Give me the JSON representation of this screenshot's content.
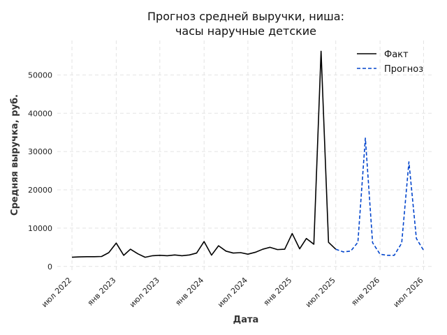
{
  "chart_data": {
    "type": "line",
    "title_line1": "Прогноз средней выручки, ниша:",
    "title_line2": "часы наручные детские",
    "xlabel": "Дата",
    "ylabel": "Средняя выручка, руб.",
    "xticks": [
      {
        "date": "2022-07-01",
        "label": "июл 2022"
      },
      {
        "date": "2023-01-01",
        "label": "янв 2023"
      },
      {
        "date": "2023-07-01",
        "label": "июл 2023"
      },
      {
        "date": "2024-01-01",
        "label": "янв 2024"
      },
      {
        "date": "2024-07-01",
        "label": "июл 2024"
      },
      {
        "date": "2025-01-01",
        "label": "янв 2025"
      },
      {
        "date": "2025-07-01",
        "label": "июл 2025"
      },
      {
        "date": "2026-01-01",
        "label": "янв 2026"
      },
      {
        "date": "2026-07-01",
        "label": "июл 2026"
      }
    ],
    "yticks": [
      0,
      10000,
      20000,
      30000,
      40000,
      50000
    ],
    "xlim": [
      "2022-05-01",
      "2026-08-15"
    ],
    "ylim": [
      -1500,
      59000
    ],
    "grid": true,
    "legend_position": "top-right",
    "series": [
      {
        "name": "Факт",
        "color": "#000000",
        "style": "solid",
        "x": [
          "2022-07-01",
          "2022-08-01",
          "2022-09-01",
          "2022-10-01",
          "2022-11-01",
          "2022-12-01",
          "2023-01-01",
          "2023-02-01",
          "2023-03-01",
          "2023-04-01",
          "2023-05-01",
          "2023-06-01",
          "2023-07-01",
          "2023-08-01",
          "2023-09-01",
          "2023-10-01",
          "2023-11-01",
          "2023-12-01",
          "2024-01-01",
          "2024-02-01",
          "2024-03-01",
          "2024-04-01",
          "2024-05-01",
          "2024-06-01",
          "2024-07-01",
          "2024-08-01",
          "2024-09-01",
          "2024-10-01",
          "2024-11-01",
          "2024-12-01",
          "2025-01-01",
          "2025-02-01",
          "2025-03-01",
          "2025-04-01",
          "2025-05-01",
          "2025-06-01",
          "2025-07-01"
        ],
        "y": [
          2400,
          2500,
          2550,
          2550,
          2600,
          3600,
          6100,
          2900,
          4500,
          3300,
          2400,
          2800,
          2900,
          2800,
          3000,
          2800,
          3000,
          3500,
          6500,
          2950,
          5400,
          4000,
          3500,
          3600,
          3200,
          3700,
          4500,
          5000,
          4400,
          4500,
          8600,
          4600,
          7300,
          5800,
          56200,
          6300,
          4500
        ]
      },
      {
        "name": "Прогноз",
        "color": "#0044cc",
        "style": "dashed",
        "x": [
          "2025-07-01",
          "2025-08-01",
          "2025-09-01",
          "2025-10-01",
          "2025-11-01",
          "2025-12-01",
          "2026-01-01",
          "2026-02-01",
          "2026-03-01",
          "2026-04-01",
          "2026-05-01",
          "2026-06-01",
          "2026-07-01"
        ],
        "y": [
          4500,
          3800,
          4000,
          6300,
          33500,
          6200,
          3200,
          2900,
          2900,
          6100,
          27300,
          7300,
          4200
        ]
      }
    ]
  }
}
